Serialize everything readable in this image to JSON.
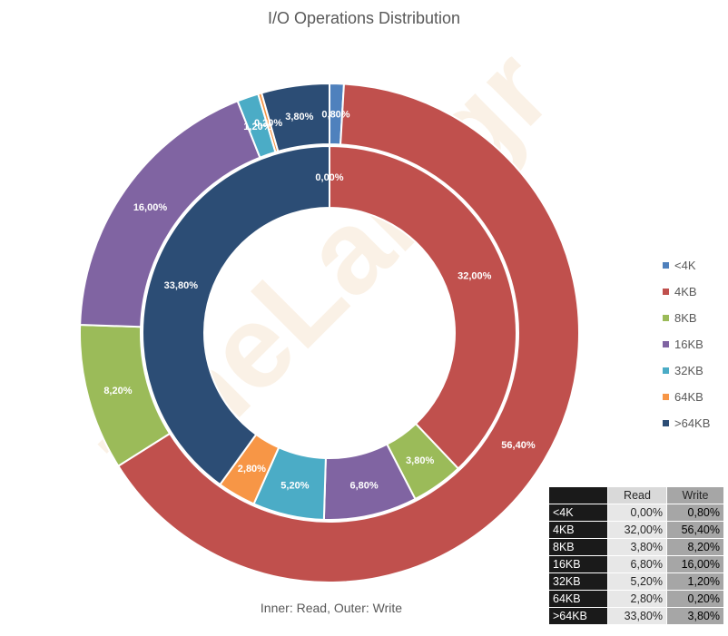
{
  "chart_data": {
    "type": "pie",
    "subtype": "doughnut",
    "title": "I/O Operations Distribution",
    "caption": "Inner: Read, Outer: Write",
    "watermark": "TheLab.gr",
    "categories": [
      "<4K",
      "4KB",
      "8KB",
      "16KB",
      "32KB",
      "64KB",
      ">64KB"
    ],
    "series": [
      {
        "ring": "inner",
        "values": [
          0.0,
          32.0,
          3.8,
          6.8,
          5.2,
          2.8,
          33.8
        ]
      },
      {
        "ring": "outer",
        "values": [
          0.8,
          56.4,
          8.2,
          16.0,
          1.2,
          0.2,
          3.8
        ]
      }
    ],
    "slice_labels": {
      "inner": [
        "0,00%",
        "32,00%",
        "3,80%",
        "6,80%",
        "5,20%",
        "2,80%",
        "33,80%"
      ],
      "outer": [
        "0,80%",
        "56,40%",
        "8,20%",
        "16,00%",
        "1,20%",
        "0,20%",
        "3,80%"
      ]
    },
    "colors": [
      "#4f81bd",
      "#c0504d",
      "#9bbb59",
      "#8064a2",
      "#4bacc6",
      "#f79646",
      "#2c4d75"
    ],
    "legend": {
      "position": "right",
      "entries": [
        "<4K",
        "4KB",
        "8KB",
        "16KB",
        "32KB",
        "64KB",
        ">64KB"
      ]
    },
    "table": {
      "headers": [
        "",
        "Read",
        "Write"
      ],
      "rows": [
        [
          "<4K",
          "0,00%",
          "0,80%"
        ],
        [
          "4KB",
          "32,00%",
          "56,40%"
        ],
        [
          "8KB",
          "3,80%",
          "8,20%"
        ],
        [
          "16KB",
          "6,80%",
          "16,00%"
        ],
        [
          "32KB",
          "5,20%",
          "1,20%"
        ],
        [
          "64KB",
          "2,80%",
          "0,20%"
        ],
        [
          ">64KB",
          "33,80%",
          "3,80%"
        ]
      ]
    }
  }
}
